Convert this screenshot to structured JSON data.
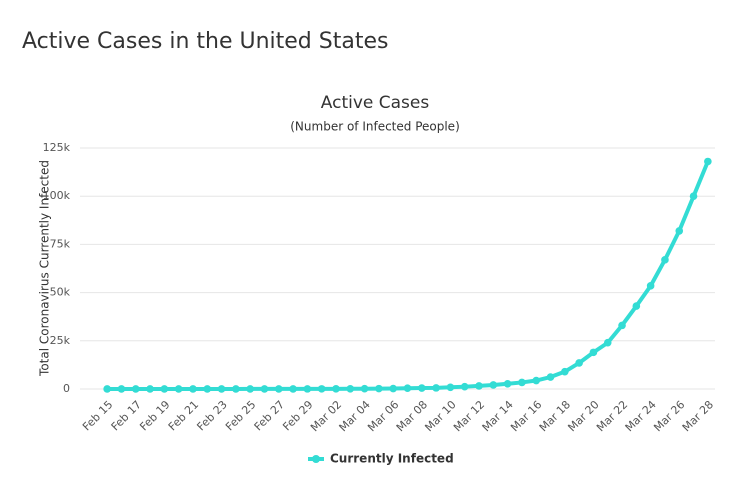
{
  "header": {
    "title": "Active Cases in the United States"
  },
  "chart_data": {
    "type": "line",
    "title": "Active Cases",
    "subtitle": "(Number of Infected People)",
    "y_axis_label": "Total Coronavirus Currently Infected",
    "categories": [
      "Feb 15",
      null,
      "Feb 17",
      null,
      "Feb 19",
      null,
      "Feb 21",
      null,
      "Feb 23",
      null,
      "Feb 25",
      null,
      "Feb 27",
      null,
      "Feb 29",
      null,
      "Mar 02",
      null,
      "Mar 04",
      null,
      "Mar 06",
      null,
      "Mar 08",
      null,
      "Mar 10",
      null,
      "Mar 12",
      null,
      "Mar 14",
      null,
      "Mar 16",
      null,
      "Mar 18",
      null,
      "Mar 20",
      null,
      "Mar 22",
      null,
      "Mar 24",
      null,
      "Mar 26",
      null,
      "Mar 28"
    ],
    "series": [
      {
        "name": "Currently Infected",
        "color": "#33dcd4",
        "values": [
          12,
          12,
          13,
          13,
          13,
          13,
          15,
          15,
          15,
          15,
          50,
          50,
          55,
          55,
          60,
          70,
          90,
          110,
          140,
          200,
          240,
          400,
          500,
          580,
          900,
          1200,
          1600,
          2100,
          2700,
          3400,
          4400,
          6200,
          9000,
          13500,
          19000,
          24000,
          33000,
          43000,
          53500,
          67000,
          82000,
          100000,
          118000
        ]
      }
    ],
    "ylim": [
      0,
      125000
    ],
    "yticks": [
      0,
      {
        "value": 25000,
        "label": "25k"
      },
      {
        "value": 50000,
        "label": "50k"
      },
      {
        "value": 75000,
        "label": "75k"
      },
      {
        "value": 100000,
        "label": "100k"
      },
      {
        "value": 125000,
        "label": "125k"
      }
    ],
    "grid": true,
    "legend": "bottom"
  }
}
